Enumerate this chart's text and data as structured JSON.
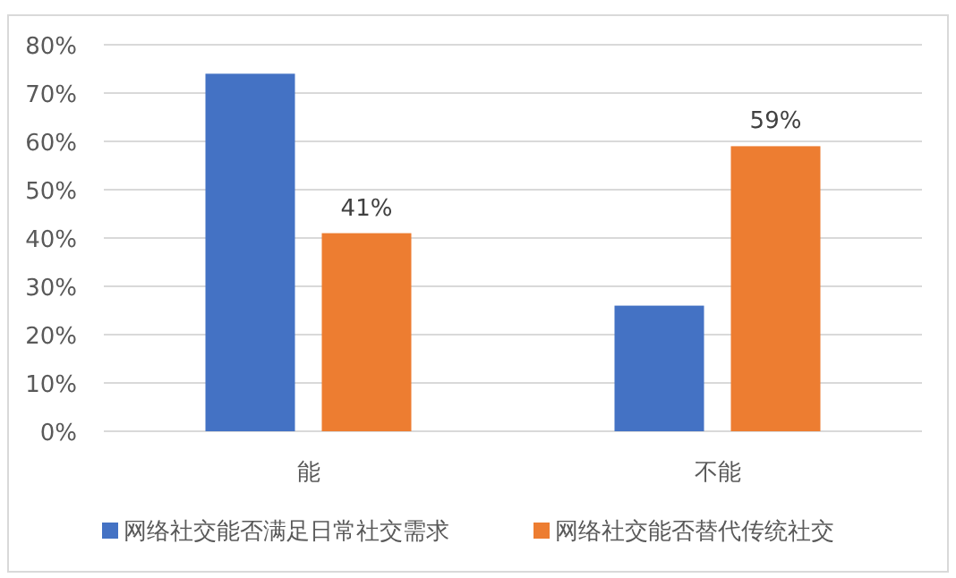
{
  "chart_data": {
    "type": "bar",
    "categories": [
      "能",
      "不能"
    ],
    "series": [
      {
        "name": "网络社交能否满足日常社交需求",
        "color": "#4472c4",
        "values": [
          74,
          26
        ]
      },
      {
        "name": "网络社交能否替代传统社交",
        "color": "#ed7d31",
        "values": [
          41,
          59
        ],
        "value_labels": [
          "41%",
          "59%"
        ]
      }
    ],
    "ylim": [
      0,
      80
    ],
    "yticks": [
      {
        "value": 0,
        "label": "0%"
      },
      {
        "value": 10,
        "label": "10%"
      },
      {
        "value": 20,
        "label": "20%"
      },
      {
        "value": 30,
        "label": "30%"
      },
      {
        "value": 40,
        "label": "40%"
      },
      {
        "value": 50,
        "label": "50%"
      },
      {
        "value": 60,
        "label": "60%"
      },
      {
        "value": 70,
        "label": "70%"
      },
      {
        "value": 80,
        "label": "80%"
      }
    ],
    "grid": "y",
    "legend": "bottom"
  }
}
